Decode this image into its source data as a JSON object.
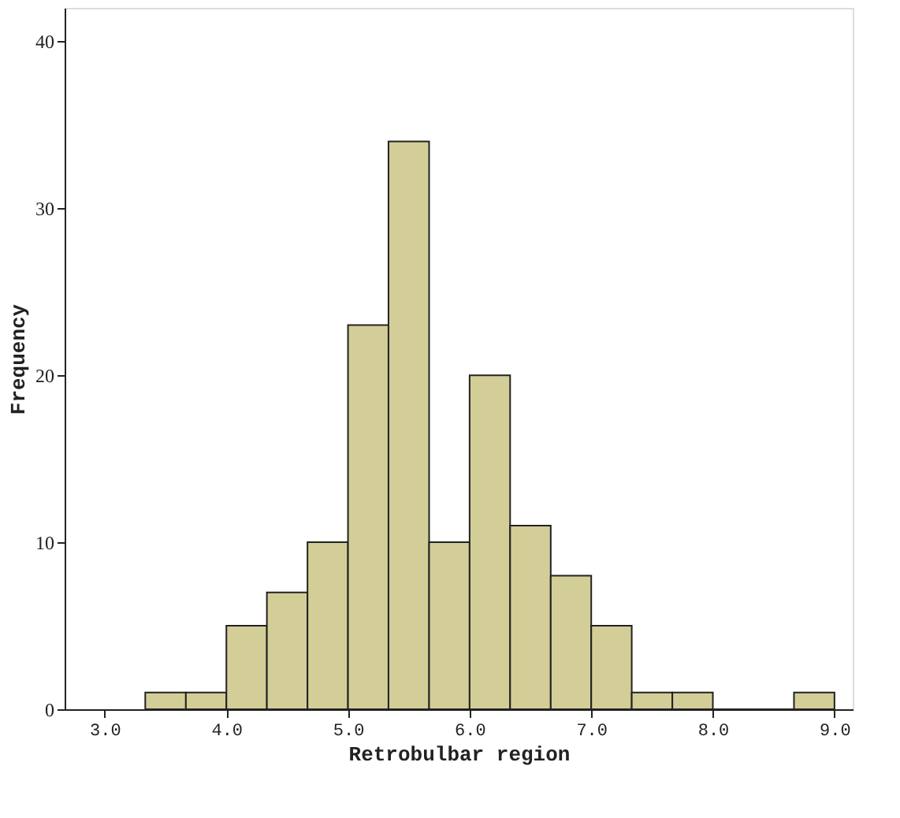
{
  "chart_data": {
    "type": "histogram",
    "xlabel": "Retrobulbar region",
    "ylabel": "Frequency",
    "bins": [
      3.333,
      3.667,
      4.0,
      4.333,
      4.667,
      5.0,
      5.333,
      5.667,
      6.0,
      6.333,
      6.667,
      7.0,
      7.333,
      7.667,
      8.0,
      8.333,
      8.667,
      9.0
    ],
    "values": [
      1,
      1,
      5,
      7,
      10,
      23,
      34,
      10,
      20,
      11,
      8,
      5,
      1,
      1,
      0,
      0,
      1
    ],
    "color": "#d3ce97",
    "xlim": [
      2.67,
      9.15
    ],
    "xticks": [
      {
        "value": 3,
        "label": "3.0"
      },
      {
        "value": 4,
        "label": "4.0"
      },
      {
        "value": 5,
        "label": "5.0"
      },
      {
        "value": 6,
        "label": "6.0"
      },
      {
        "value": 7,
        "label": "7.0"
      },
      {
        "value": 8,
        "label": "8.0"
      },
      {
        "value": 9,
        "label": "9.0"
      }
    ],
    "ylim": [
      0,
      42
    ],
    "yticks": [
      0,
      10,
      20,
      30,
      40
    ],
    "grid": false
  }
}
